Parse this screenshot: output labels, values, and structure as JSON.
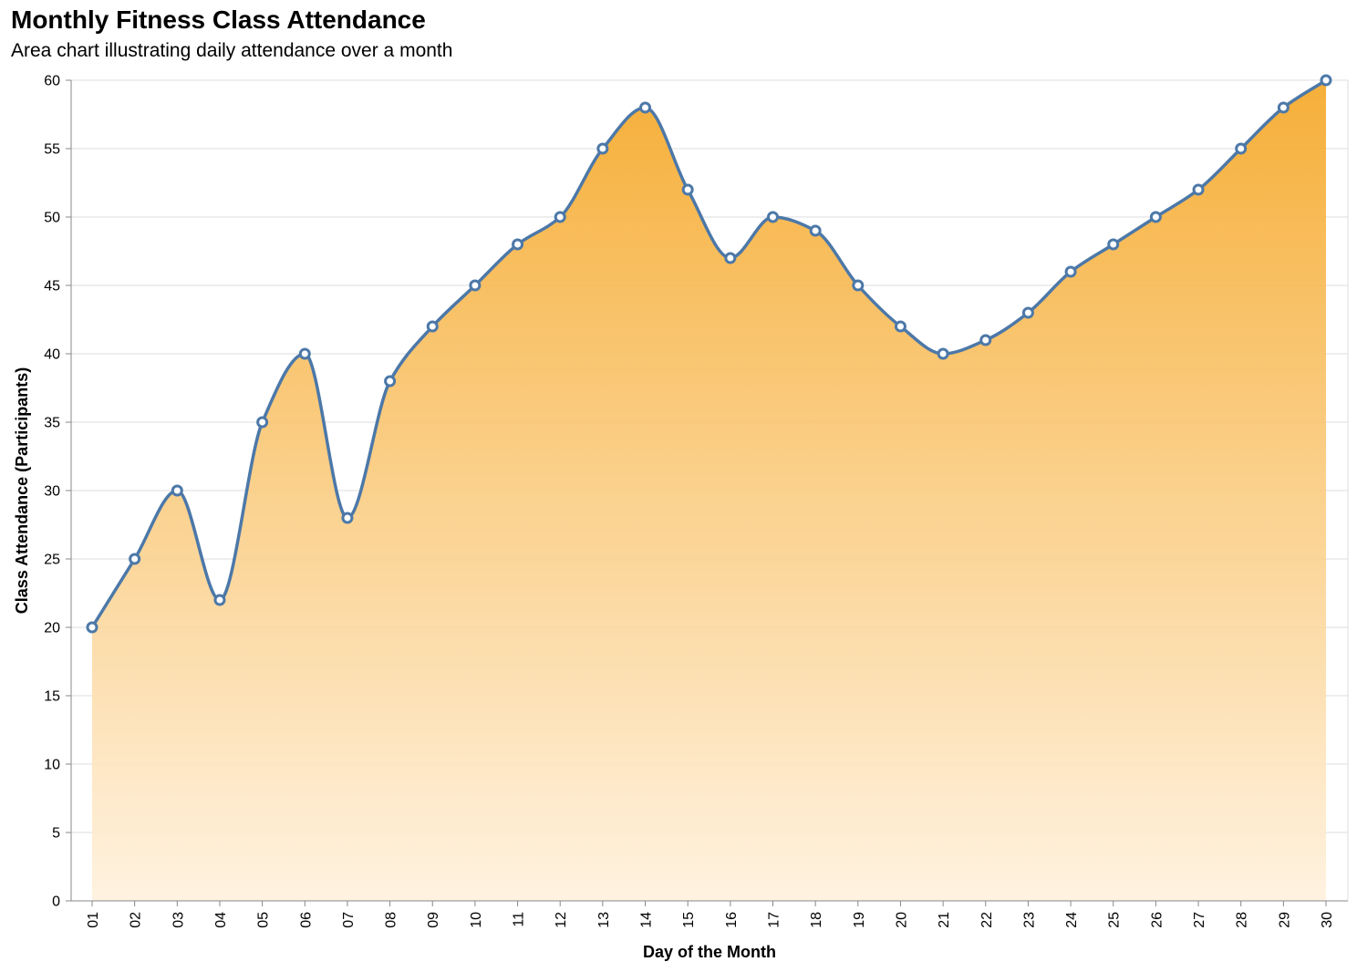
{
  "chart_data": {
    "type": "area",
    "title": "Monthly Fitness Class Attendance",
    "subtitle": "Area chart illustrating daily attendance over a month",
    "xlabel": "Day of the Month",
    "ylabel": "Class Attendance (Participants)",
    "ylim": [
      0,
      60
    ],
    "yticks": [
      0,
      5,
      10,
      15,
      20,
      25,
      30,
      35,
      40,
      45,
      50,
      55,
      60
    ],
    "categories": [
      "01",
      "02",
      "03",
      "04",
      "05",
      "06",
      "07",
      "08",
      "09",
      "10",
      "11",
      "12",
      "13",
      "14",
      "15",
      "16",
      "17",
      "18",
      "19",
      "20",
      "21",
      "22",
      "23",
      "24",
      "25",
      "26",
      "27",
      "28",
      "29",
      "30"
    ],
    "values": [
      20,
      25,
      30,
      22,
      35,
      40,
      28,
      38,
      42,
      45,
      48,
      50,
      55,
      58,
      52,
      47,
      50,
      49,
      45,
      42,
      40,
      41,
      43,
      46,
      48,
      50,
      52,
      55,
      58,
      60
    ],
    "grid": true,
    "legend": "none",
    "colors": {
      "line": "#4c78a8",
      "area_top": "#f5a623",
      "area_bottom": "#fff1dd",
      "grid": "#dddddd",
      "axis": "#888888"
    }
  }
}
